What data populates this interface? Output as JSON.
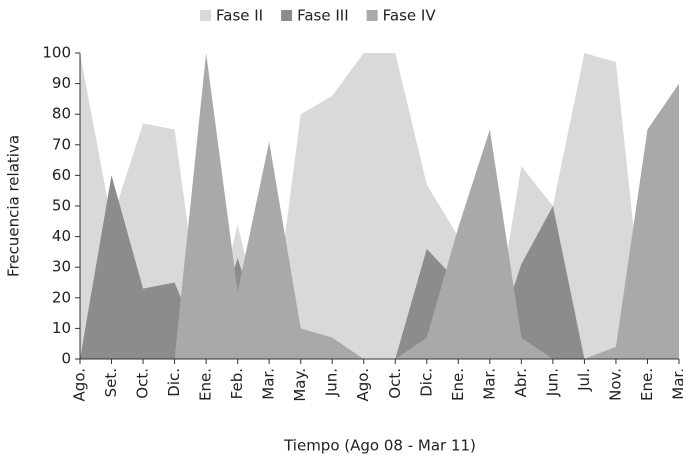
{
  "chart_data": {
    "type": "area",
    "x_label": "Tiempo (Ago 08 - Mar 11)",
    "y_label": "Frecuencia relativa",
    "categories": [
      "Ago.",
      "Set.",
      "Oct.",
      "Dic.",
      "Ene.",
      "Feb.",
      "Mar.",
      "May.",
      "Jun.",
      "Ago.",
      "Oct.",
      "Dic.",
      "Ene.",
      "Mar.",
      "Abr.",
      "Jun.",
      "Jul.",
      "Nov.",
      "Ene.",
      "Mar."
    ],
    "series": [
      {
        "name": "Fase II",
        "color": "#d9d9d9",
        "values": [
          100,
          45,
          77,
          75,
          0,
          44,
          0,
          80,
          86,
          100,
          100,
          57,
          40,
          0,
          63,
          50,
          100,
          97,
          0,
          0
        ]
      },
      {
        "name": "Fase III",
        "color": "#8c8c8c",
        "values": [
          0,
          60,
          23,
          25,
          0,
          33,
          0,
          0,
          0,
          0,
          0,
          36,
          25,
          0,
          31,
          50,
          0,
          0,
          0,
          0
        ]
      },
      {
        "name": "Fase IV",
        "color": "#a9a9a9",
        "values": [
          0,
          0,
          0,
          0,
          100,
          22,
          71,
          10,
          7,
          0,
          0,
          7,
          43,
          75,
          7,
          0,
          0,
          4,
          75,
          90
        ]
      }
    ],
    "ylim": [
      0,
      100
    ],
    "yticks": [
      0,
      10,
      20,
      30,
      40,
      50,
      60,
      70,
      80,
      90,
      100
    ]
  }
}
